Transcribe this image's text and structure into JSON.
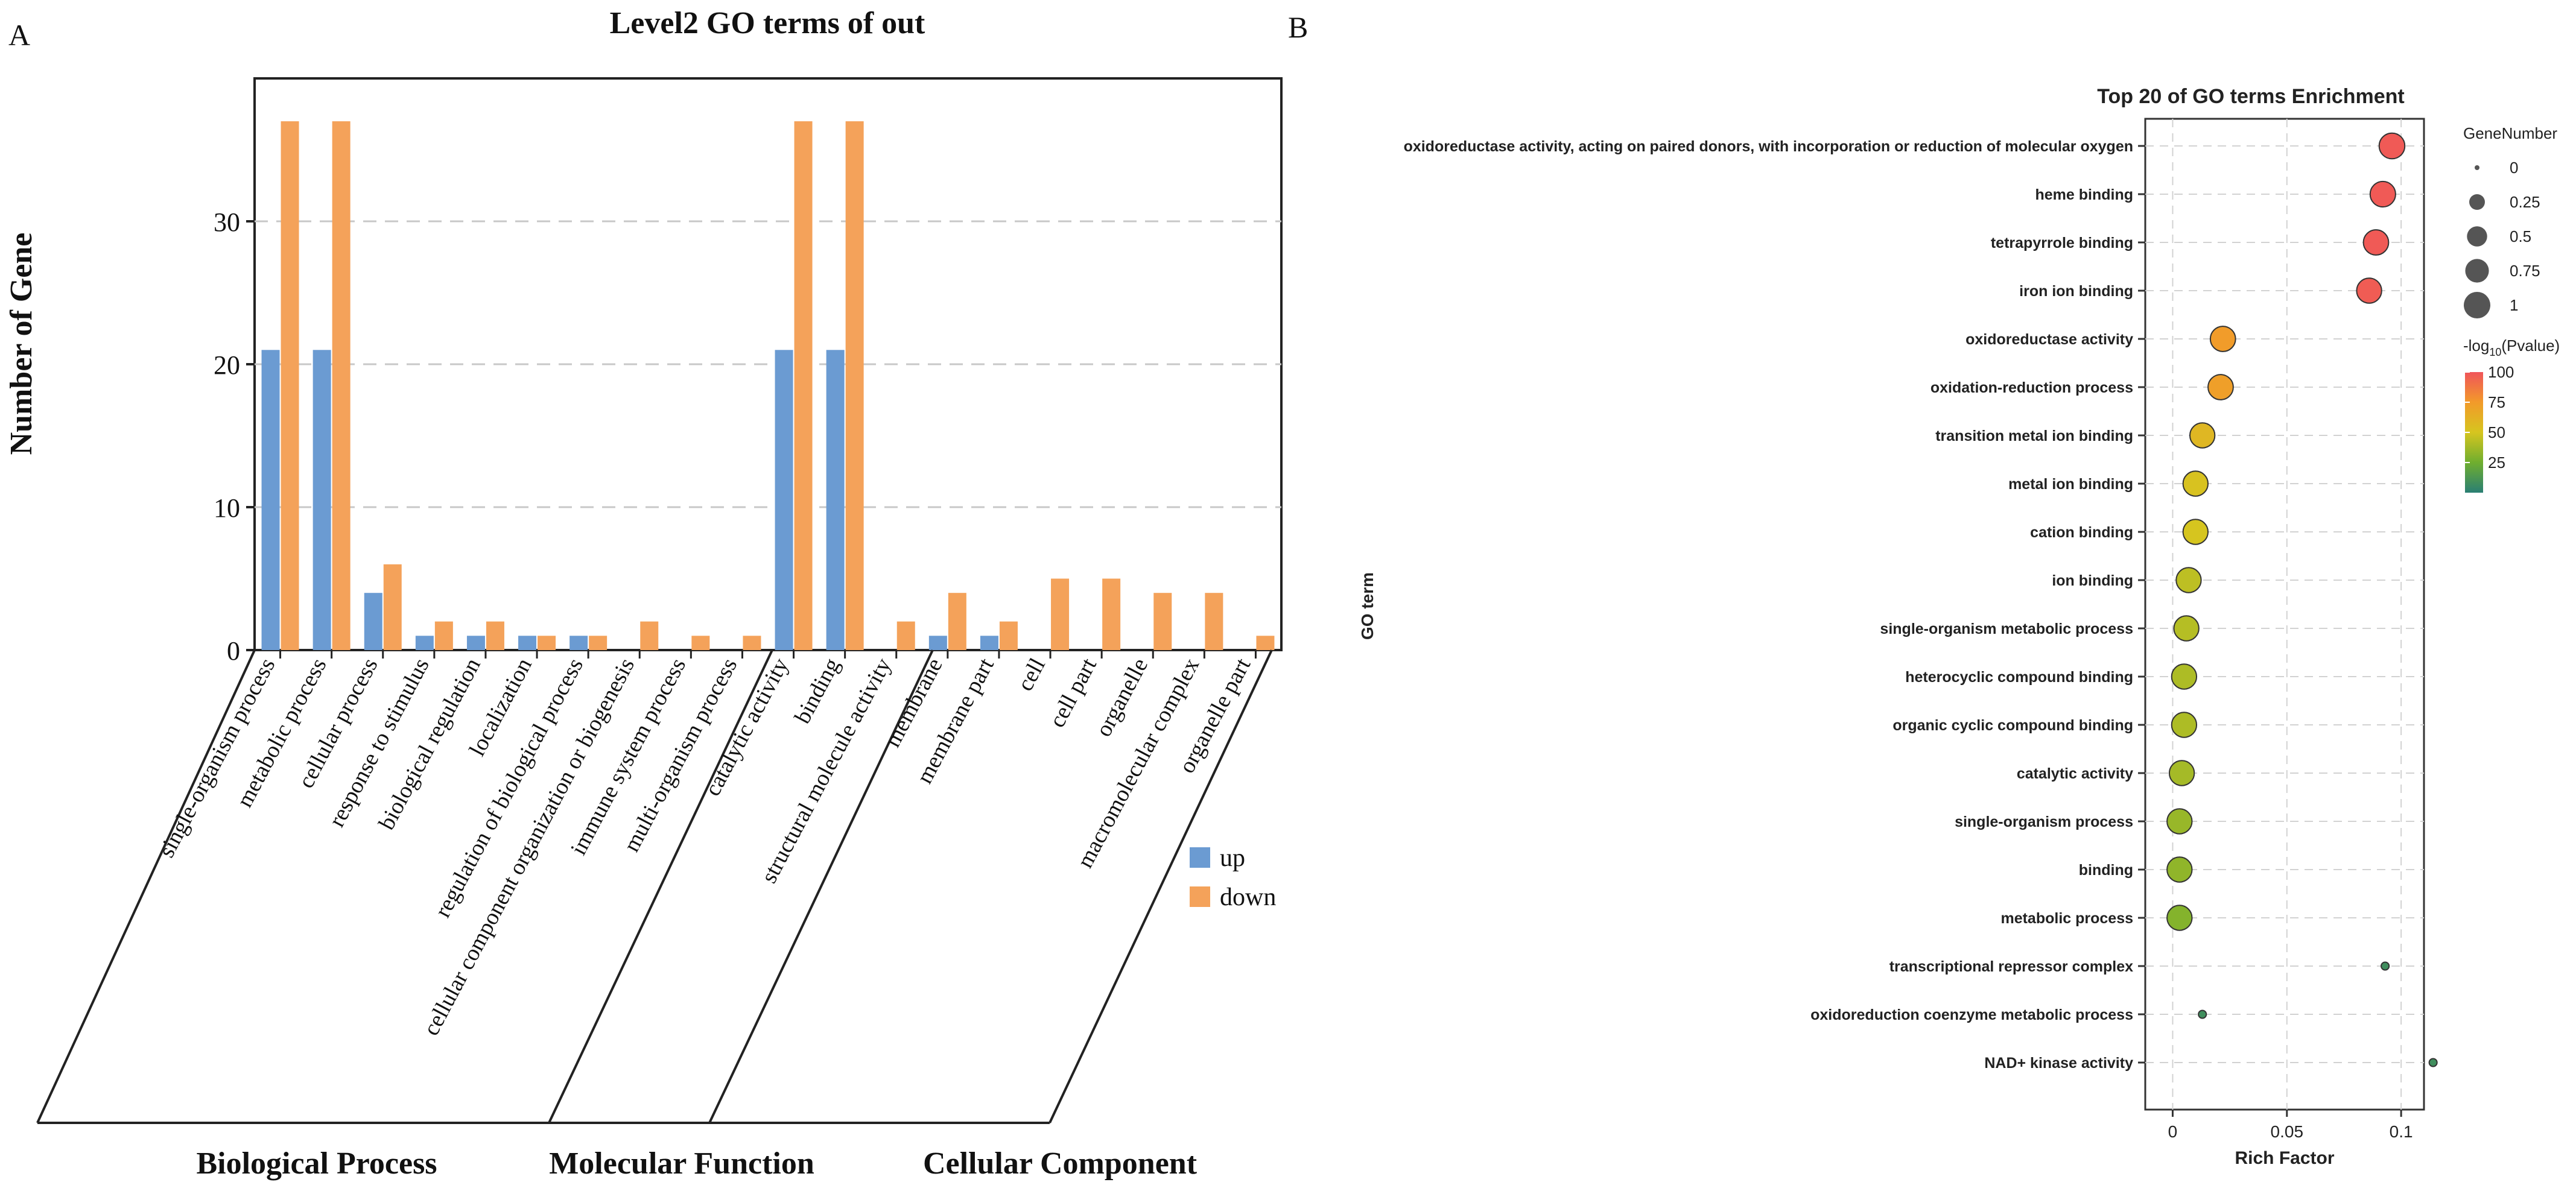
{
  "panel_labels": {
    "a": "A",
    "b": "B"
  },
  "colors": {
    "up": "#6b9bd2",
    "down": "#f4a25a",
    "grid": "#c8c8c8",
    "axis": "#222222",
    "dot_edge": "#333333"
  },
  "chart_data": [
    {
      "type": "bar",
      "title": "Level2 GO terms of out",
      "ylabel": "Number of Gene",
      "xlabel": "",
      "ylim": [
        0,
        40
      ],
      "yticks": [
        "0",
        "10",
        "20",
        "30"
      ],
      "categories": [
        "single-organism process",
        "metabolic process",
        "cellular process",
        "response to stimulus",
        "biological regulation",
        "localization",
        "regulation of biological process",
        "cellular component organization or biogenesis",
        "immune system process",
        "multi-organism process",
        "catalytic activity",
        "binding",
        "structural molecule activity",
        "membrane",
        "membrane part",
        "cell",
        "cell part",
        "organelle",
        "macromolecular complex",
        "organelle part"
      ],
      "series": [
        {
          "name": "up",
          "values": [
            21,
            21,
            4,
            1,
            1,
            1,
            1,
            0,
            0,
            0,
            21,
            21,
            0,
            1,
            1,
            0,
            0,
            0,
            0,
            0
          ]
        },
        {
          "name": "down",
          "values": [
            37,
            37,
            6,
            2,
            2,
            1,
            1,
            2,
            1,
            1,
            37,
            37,
            2,
            4,
            2,
            5,
            5,
            4,
            4,
            1
          ]
        }
      ],
      "legend": [
        "up",
        "down"
      ],
      "groups": [
        {
          "name": "Biological Process"
        },
        {
          "name": "Molecular Function"
        },
        {
          "name": "Cellular Component"
        }
      ]
    },
    {
      "type": "scatter",
      "title": "Top 20 of GO terms Enrichment",
      "xlabel": "Rich Factor",
      "ylabel": "GO term",
      "xlim": [
        -0.012,
        0.11
      ],
      "xticks": [
        "0",
        "0.05",
        "0.1"
      ],
      "terms": [
        "oxidoreductase activity, acting on paired donors, with incorporation or reduction of molecular oxygen",
        "heme binding",
        "tetrapyrrole binding",
        "iron ion binding",
        "oxidoreductase activity",
        "oxidation-reduction process",
        "transition metal ion binding",
        "metal ion binding",
        "cation binding",
        "ion binding",
        "single-organism metabolic process",
        "heterocyclic compound binding",
        "organic cyclic compound binding",
        "catalytic activity",
        "single-organism process",
        "binding",
        "metabolic process",
        "transcriptional repressor complex",
        "oxidoreduction coenzyme metabolic process",
        "NAD+ kinase activity"
      ],
      "rich_factor": [
        0.096,
        0.092,
        0.089,
        0.086,
        0.022,
        0.021,
        0.013,
        0.01,
        0.01,
        0.007,
        0.006,
        0.005,
        0.005,
        0.004,
        0.003,
        0.003,
        0.003,
        0.093,
        0.013,
        0.114
      ],
      "gene_number": [
        0.92,
        0.9,
        0.88,
        0.86,
        0.88,
        0.88,
        0.86,
        0.86,
        0.86,
        0.86,
        0.86,
        0.86,
        0.86,
        0.86,
        0.86,
        0.86,
        0.86,
        0.02,
        0.02,
        0.02
      ],
      "neg_log10_pvalue": [
        98,
        98,
        98,
        97,
        74,
        72,
        58,
        52,
        50,
        44,
        42,
        40,
        40,
        38,
        35,
        33,
        30,
        8,
        8,
        8
      ],
      "size_legend": {
        "title": "GeneNumber",
        "labels": [
          "0",
          "0.25",
          "0.5",
          "0.75",
          "1"
        ],
        "values": [
          0,
          0.25,
          0.5,
          0.75,
          1
        ]
      },
      "color_legend": {
        "title_prefix": "-log",
        "title_sub": "10",
        "title_suffix": "(Pvalue)",
        "labels": [
          "100",
          "75",
          "50",
          "25"
        ],
        "values": [
          100,
          75,
          50,
          25
        ],
        "range": [
          0,
          100
        ]
      }
    }
  ]
}
